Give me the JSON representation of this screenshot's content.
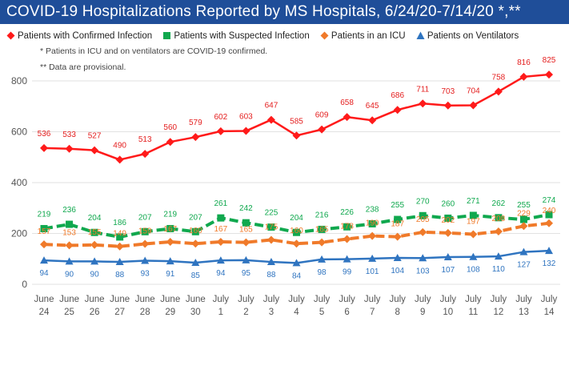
{
  "title": "COVID-19 Hospitalizations Reported by MS Hospitals, 6/24/20-7/14/20 *,**",
  "notes": [
    "* Patients in ICU and on ventilators are COVID-19 confirmed.",
    "** Data are provisional."
  ],
  "colors": {
    "title_bg": "#1f4e99",
    "confirmed": "#ff1a1a",
    "suspected": "#10a84e",
    "icu": "#f07a2a",
    "ventilators": "#2f74c0"
  },
  "chart_data": {
    "type": "line",
    "x_top": [
      "June",
      "June",
      "June",
      "June",
      "June",
      "June",
      "June",
      "July",
      "July",
      "July",
      "July",
      "July",
      "July",
      "July",
      "July",
      "July",
      "July",
      "July",
      "July",
      "July",
      "July"
    ],
    "x_bottom": [
      "24",
      "25",
      "26",
      "27",
      "28",
      "29",
      "30",
      "1",
      "2",
      "3",
      "4",
      "5",
      "6",
      "7",
      "8",
      "9",
      "10",
      "11",
      "12",
      "13",
      "14"
    ],
    "ylim": [
      0,
      900
    ],
    "yticks": [
      0,
      200,
      400,
      600,
      800
    ],
    "grid": "horizontal",
    "legend": "top",
    "series": [
      {
        "key": "confirmed",
        "name": "Patients with Confirmed Infection",
        "marker": "diamond",
        "dashed": false,
        "values": [
          536,
          533,
          527,
          490,
          513,
          560,
          579,
          602,
          603,
          647,
          585,
          609,
          658,
          645,
          686,
          711,
          703,
          704,
          758,
          816,
          825
        ],
        "labels": [
          "536",
          "533",
          "527",
          "490",
          "513",
          "560",
          "579",
          "602",
          "603",
          "647",
          "585",
          "609",
          "658",
          "645",
          "686",
          "711",
          "703",
          "704",
          "758",
          "816",
          "825"
        ]
      },
      {
        "key": "suspected",
        "name": "Patients with Suspected Infection",
        "marker": "square",
        "dashed": true,
        "values": [
          219,
          236,
          204,
          186,
          207,
          219,
          207,
          261,
          242,
          225,
          204,
          216,
          226,
          238,
          255,
          270,
          260,
          271,
          262,
          255,
          274
        ],
        "labels": [
          "219",
          "236",
          "204",
          "186",
          "207",
          "219",
          "207",
          "261",
          "242",
          "225",
          "204",
          "216",
          "226",
          "238",
          "255",
          "270",
          "260",
          "271",
          "262",
          "255",
          "274"
        ]
      },
      {
        "key": "icu",
        "name": "Patients in an ICU",
        "marker": "diamond",
        "dashed": true,
        "values": [
          157,
          153,
          155,
          149,
          159,
          167,
          160,
          167,
          165,
          175,
          160,
          165,
          178,
          190,
          187,
          205,
          202,
          197,
          208,
          229,
          240
        ],
        "labels": [
          "157",
          "153",
          "155",
          "149",
          "159",
          "167",
          "160",
          "167",
          "165",
          "175",
          "160",
          "165",
          "178",
          "190",
          "187",
          "205",
          "202",
          "197",
          "208",
          "229",
          "240"
        ]
      },
      {
        "key": "ventilators",
        "name": "Patients on Ventilators",
        "marker": "triangle",
        "dashed": false,
        "values": [
          94,
          90,
          90,
          88,
          93,
          91,
          85,
          94,
          95,
          88,
          84,
          98,
          99,
          101,
          104,
          103,
          107,
          108,
          110,
          127,
          132
        ],
        "labels": [
          "94",
          "90",
          "90",
          "88",
          "93",
          "91",
          "85",
          "94",
          "95",
          "88",
          "84",
          "98",
          "99",
          "101",
          "104",
          "103",
          "107",
          "108",
          "110",
          "127",
          "132"
        ]
      }
    ]
  }
}
